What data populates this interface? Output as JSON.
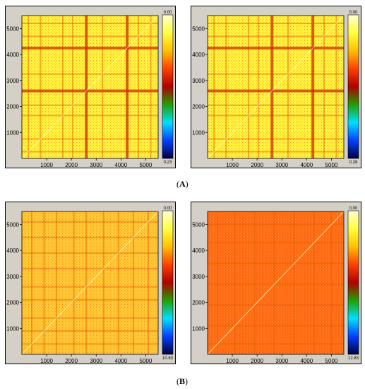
{
  "figure_labels": [
    {
      "open": "(",
      "letter": "A",
      "close": ")"
    },
    {
      "open": "(",
      "letter": "B",
      "close": ")"
    }
  ],
  "colors": {
    "panel_bg": "#d4d0c8",
    "colormap": [
      "#ffffd0",
      "#ffff40",
      "#ffc000",
      "#ff4000",
      "#b00000",
      "#20a000",
      "#00e0ff",
      "#0040ff",
      "#000040"
    ]
  },
  "chart_data": [
    {
      "type": "heatmap",
      "panel": "A-left",
      "xticks": [
        1000,
        2000,
        3000,
        4000,
        5000
      ],
      "yticks": [
        1000,
        2000,
        3000,
        4000,
        5000
      ],
      "xlim": [
        0,
        5500
      ],
      "ylim": [
        0,
        5500
      ],
      "colorbar": {
        "top_label": "0.00",
        "bottom_label": "0.23"
      },
      "base_color": "#fff23a",
      "bands": [
        260,
        750,
        1650,
        2050,
        2600,
        3250,
        4250,
        4700,
        5200
      ],
      "strong_bands": [
        650,
        1700,
        2600,
        4250
      ]
    },
    {
      "type": "heatmap",
      "panel": "A-right",
      "xticks": [
        1000,
        2000,
        3000,
        4000,
        5000
      ],
      "yticks": [
        1000,
        2000,
        3000,
        4000,
        5000
      ],
      "xlim": [
        0,
        5500
      ],
      "ylim": [
        0,
        5500
      ],
      "colorbar": {
        "top_label": "0.00",
        "bottom_label": "0.28"
      },
      "base_color": "#fff23a",
      "bands": [
        260,
        750,
        1650,
        2050,
        2600,
        3250,
        4250,
        4700,
        5200
      ],
      "strong_bands": [
        650,
        1700,
        2600,
        4250
      ]
    },
    {
      "type": "heatmap",
      "panel": "B-left",
      "xticks": [
        1000,
        2000,
        3000,
        4000,
        5000
      ],
      "yticks": [
        1000,
        2000,
        3000,
        4000,
        5000
      ],
      "xlim": [
        0,
        5500
      ],
      "ylim": [
        0,
        5500
      ],
      "colorbar": {
        "top_label": "0.00",
        "bottom_label": "10.83"
      },
      "base_color": "#ffc832",
      "bands": [
        400,
        900,
        1400,
        2100,
        2600,
        3300,
        3900,
        4500,
        5100
      ],
      "strong_bands": []
    },
    {
      "type": "heatmap",
      "panel": "B-right",
      "xticks": [
        1000,
        2000,
        3000,
        4000,
        5000
      ],
      "yticks": [
        1000,
        2000,
        3000,
        4000,
        5000
      ],
      "xlim": [
        0,
        5500
      ],
      "ylim": [
        0,
        5500
      ],
      "colorbar": {
        "top_label": "0.00",
        "bottom_label": "12.83"
      },
      "base_color": "#ff6e14",
      "bands": [
        400,
        1100,
        1900,
        2700,
        3500,
        4300,
        5000
      ],
      "strong_bands": []
    }
  ]
}
